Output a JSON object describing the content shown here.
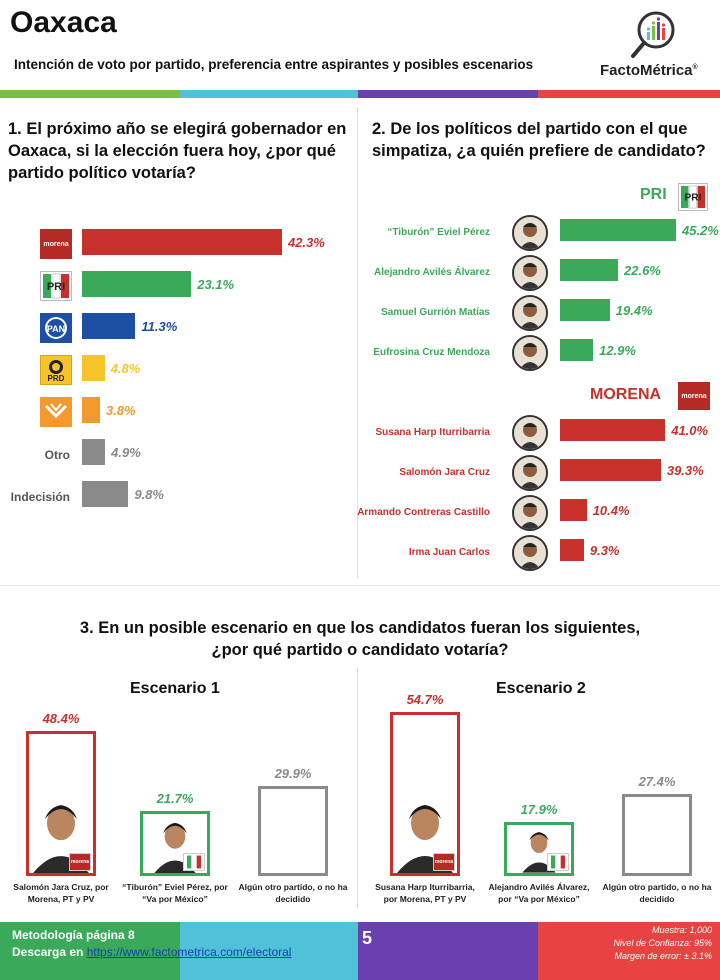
{
  "header": {
    "title": "Oaxaca",
    "subtitle": "Intención de voto por partido, preferencia entre aspirantes y posibles escenarios",
    "logo_text": "FactoMétrica",
    "logo_mark": "®"
  },
  "colors": {
    "green": "#3aaa5a",
    "red": "#c8312b",
    "blue": "#1d4fa3",
    "yellow": "#f7c52b",
    "orange": "#f29a2e",
    "gray": "#8a8a8a",
    "band_green": "#7bc043",
    "band_teal": "#4fc1d9",
    "band_purple": "#6a3fb0",
    "band_red": "#e84343"
  },
  "q1": {
    "question": "1. El próximo año se elegirá gobernador en Oaxaca, si la elección fuera hoy, ¿por qué partido político votaría?",
    "other_label": "Otro",
    "undecided_label": "Indecisión"
  },
  "q2": {
    "question": "2. De los políticos del partido con el que simpatiza, ¿a quién prefiere de candidato?",
    "pri_label": "PRI",
    "morena_label": "MORENA"
  },
  "q3": {
    "question_line1": "3. En un posible escenario en que los candidatos fueran los siguientes,",
    "question_line2": "¿por qué partido o candidato votaría?",
    "scenario1_title": "Escenario 1",
    "scenario2_title": "Escenario 2"
  },
  "chart_data": [
    {
      "type": "bar",
      "orientation": "horizontal",
      "categories": [
        "Morena",
        "PRI",
        "PAN",
        "PRD",
        "MC",
        "Otro",
        "Indecisión"
      ],
      "values": [
        42.3,
        23.1,
        11.3,
        4.8,
        3.8,
        4.9,
        9.8
      ],
      "labels": [
        "42.3%",
        "23.1%",
        "11.3%",
        "4.8%",
        "3.8%",
        "4.9%",
        "9.8%"
      ],
      "colors": [
        "#c8312b",
        "#3aaa5a",
        "#1d4fa3",
        "#f7c52b",
        "#f29a2e",
        "#8a8a8a",
        "#8a8a8a"
      ]
    },
    {
      "type": "bar",
      "orientation": "horizontal",
      "group": "PRI",
      "categories": [
        "“Tiburón” Eviel Pérez",
        "Alejandro Avilés Álvarez",
        "Samuel Gurrión Matías",
        "Eufrosina Cruz Mendoza"
      ],
      "values": [
        45.2,
        22.6,
        19.4,
        12.9
      ],
      "labels": [
        "45.2%",
        "22.6%",
        "19.4%",
        "12.9%"
      ],
      "color": "#3aaa5a"
    },
    {
      "type": "bar",
      "orientation": "horizontal",
      "group": "MORENA",
      "categories": [
        "Susana Harp Iturribarria",
        "Salomón Jara Cruz",
        "Armando Contreras Castillo",
        "Irma Juan Carlos"
      ],
      "values": [
        41.0,
        39.3,
        10.4,
        9.3
      ],
      "labels": [
        "41.0%",
        "39.3%",
        "10.4%",
        "9.3%"
      ],
      "color": "#c8312b"
    },
    {
      "type": "bar",
      "title": "Escenario 1",
      "categories": [
        "Salomón Jara Cruz, por Morena, PT y PV",
        "“Tiburón” Eviel Pérez, por “Va por México”",
        "Algún otro partido, o no ha decidido"
      ],
      "values": [
        48.4,
        21.7,
        29.9
      ],
      "labels": [
        "48.4%",
        "21.7%",
        "29.9%"
      ],
      "colors": [
        "#c8312b",
        "#3aaa5a",
        "#8a8a8a"
      ]
    },
    {
      "type": "bar",
      "title": "Escenario 2",
      "categories": [
        "Susana Harp Iturribarria, por Morena, PT y PV",
        "Alejandro Avilés Álvarez, por “Va por México”",
        "Algún otro partido, o no ha decidido"
      ],
      "values": [
        54.7,
        17.9,
        27.4
      ],
      "labels": [
        "54.7%",
        "17.9%",
        "27.4%"
      ],
      "colors": [
        "#c8312b",
        "#3aaa5a",
        "#8a8a8a"
      ]
    }
  ],
  "footer": {
    "method_text": "Metodología página 8",
    "download_prefix": "Descarga en ",
    "download_link": "https://www.factometrica.com/electoral",
    "page_number": "5",
    "sample": "Muestra: 1,000",
    "confidence": "Nivel de Confianza: 95%",
    "margin": "Margen de error: ± 3.1%"
  }
}
